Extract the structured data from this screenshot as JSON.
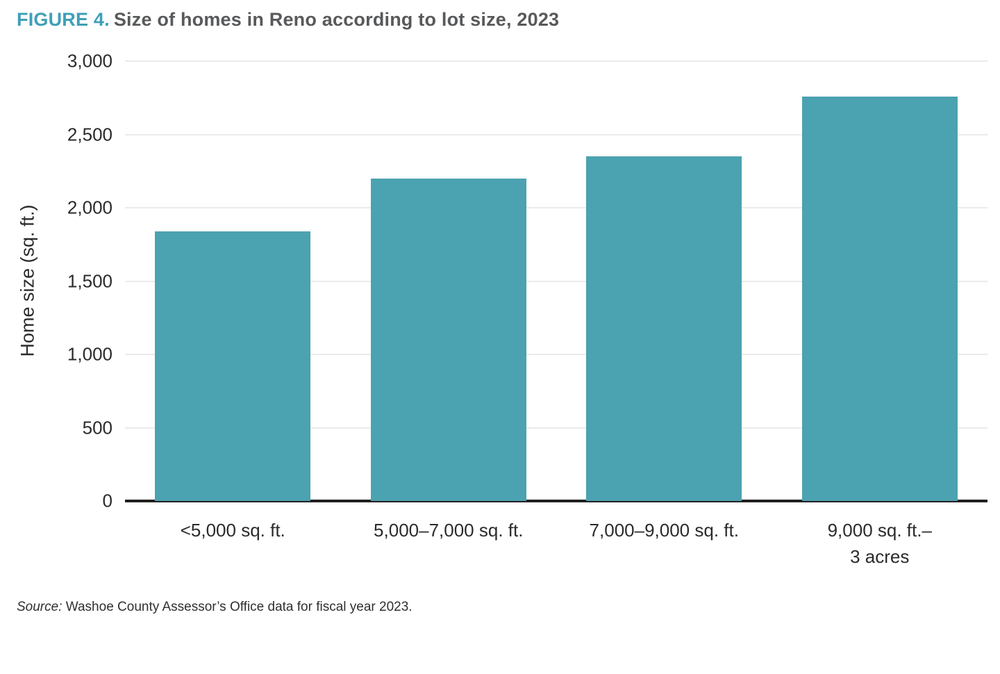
{
  "title": {
    "label": "FIGURE 4.",
    "text": "Size of homes in Reno according to lot size, 2023"
  },
  "source": {
    "label": "Source:",
    "text": " Washoe County Assessor’s Office data for fiscal year 2023."
  },
  "colors": {
    "bar": "#4BA2B0",
    "figure_label_accent": "#3F9FB8",
    "title_text": "#58595B",
    "axis_line": "#221F1F",
    "gridline": "#EBEBEB",
    "tick_text": "#2B2B2B"
  },
  "chart_data": {
    "type": "bar",
    "title": "Size of homes in Reno according to lot size, 2023",
    "categories": [
      "<5,000 sq. ft.",
      "5,000–7,000 sq. ft.",
      "7,000–9,000 sq. ft.",
      "9,000 sq. ft.–\n3 acres"
    ],
    "values": [
      1840,
      2200,
      2350,
      2760
    ],
    "xlabel": "",
    "ylabel": "Home size (sq. ft.)",
    "ylim": [
      0,
      3000
    ],
    "yticks": [
      0,
      500,
      1000,
      1500,
      2000,
      2500,
      3000
    ],
    "ytick_labels": [
      "0",
      "500",
      "1,000",
      "1,500",
      "2,000",
      "2,500",
      "3,000"
    ],
    "grid": true,
    "legend_position": "none",
    "bar_color": "#4BA2B0"
  }
}
